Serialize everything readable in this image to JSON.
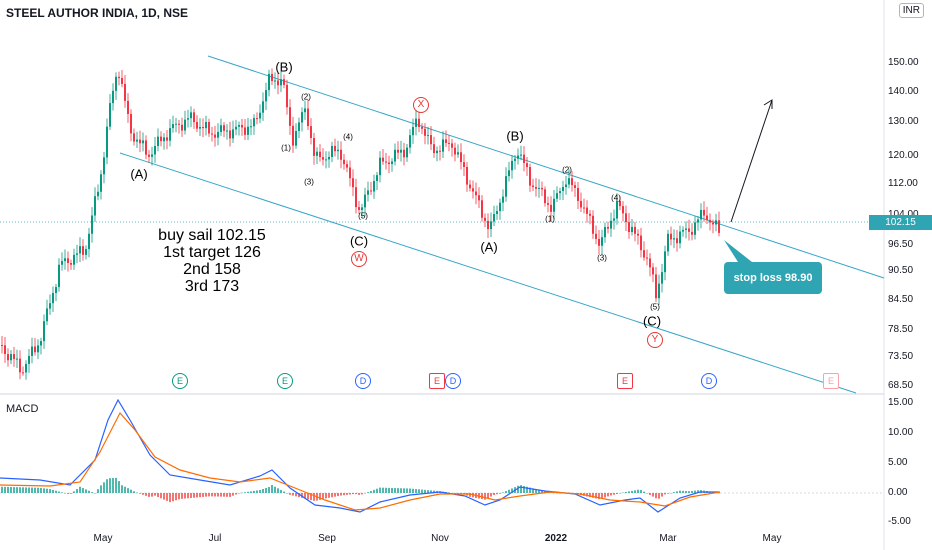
{
  "header": {
    "title": "STEEL AUTHOR INDIA, 1D, NSE",
    "currency": "INR"
  },
  "price_axis": {
    "labels": [
      "150.00",
      "140.00",
      "130.00",
      "120.00",
      "112.00",
      "104.00",
      "96.50",
      "90.50",
      "84.50",
      "78.50",
      "73.50",
      "68.50"
    ]
  },
  "macd_axis": {
    "labels": [
      "15.00",
      "10.00",
      "5.00",
      "0.00",
      "-5.00"
    ]
  },
  "time_axis": {
    "labels": [
      "May",
      "Jul",
      "Sep",
      "Nov",
      "2022",
      "Mar",
      "May"
    ]
  },
  "price_tag": "102.15",
  "macd_label": "MACD",
  "plan_lines": [
    "buy sail 102.15",
    "1st target 126",
    "2nd 158",
    "3rd 173"
  ],
  "stop_loss": "stop loss 98.90",
  "waves": {
    "big": [
      "(A)",
      "(B)",
      "(C)",
      "(A)",
      "(B)",
      "(C)"
    ],
    "small": [
      "(1)",
      "(2)",
      "(3)",
      "(4)",
      "(5)",
      "(1)",
      "(2)",
      "(3)",
      "(4)",
      "(5)"
    ],
    "circled": [
      "X",
      "W",
      "Y"
    ]
  },
  "events": [
    "E",
    "E",
    "D",
    "E",
    "D",
    "E",
    "D",
    "E"
  ],
  "colors": {
    "up": "#089981",
    "down": "#f23645",
    "channel": "#38a6c8",
    "macd": "#2962ff",
    "signal": "#ff6d00",
    "accent": "#2fa5b3"
  }
}
